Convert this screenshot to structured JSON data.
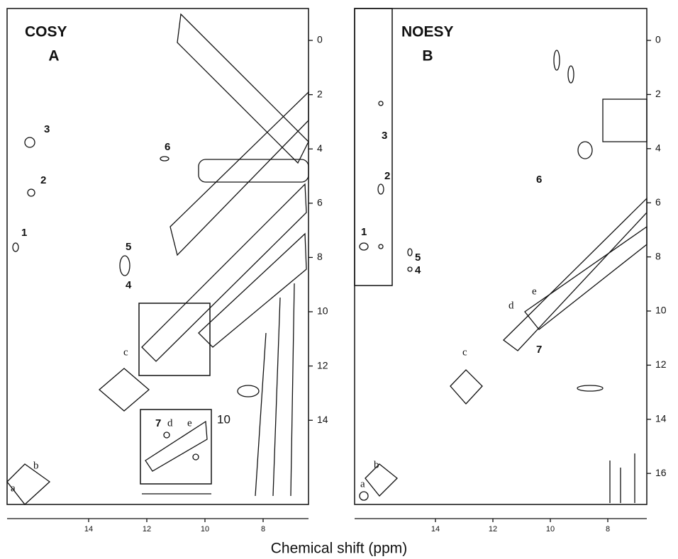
{
  "x_axis_label": "Chemical shift (ppm)",
  "panels": [
    {
      "title": "COSY",
      "letter": "A",
      "xticks": [
        14,
        12,
        10,
        8
      ],
      "yticks": [
        0,
        2,
        4,
        6,
        8,
        10,
        12,
        14
      ],
      "peak_labels": [
        "1",
        "2",
        "3",
        "4",
        "5",
        "6",
        "a",
        "b",
        "c"
      ],
      "inset": {
        "labels": [
          "7",
          "d",
          "e"
        ],
        "ytick": 10
      }
    },
    {
      "title": "NOESY",
      "letter": "B",
      "xticks": [
        14,
        12,
        10,
        8
      ],
      "yticks": [
        0,
        2,
        4,
        6,
        8,
        10,
        12,
        14,
        16
      ],
      "peak_labels": [
        "1",
        "2",
        "3",
        "4",
        "5",
        "6",
        "7",
        "a",
        "b",
        "c",
        "d",
        "e"
      ]
    }
  ]
}
